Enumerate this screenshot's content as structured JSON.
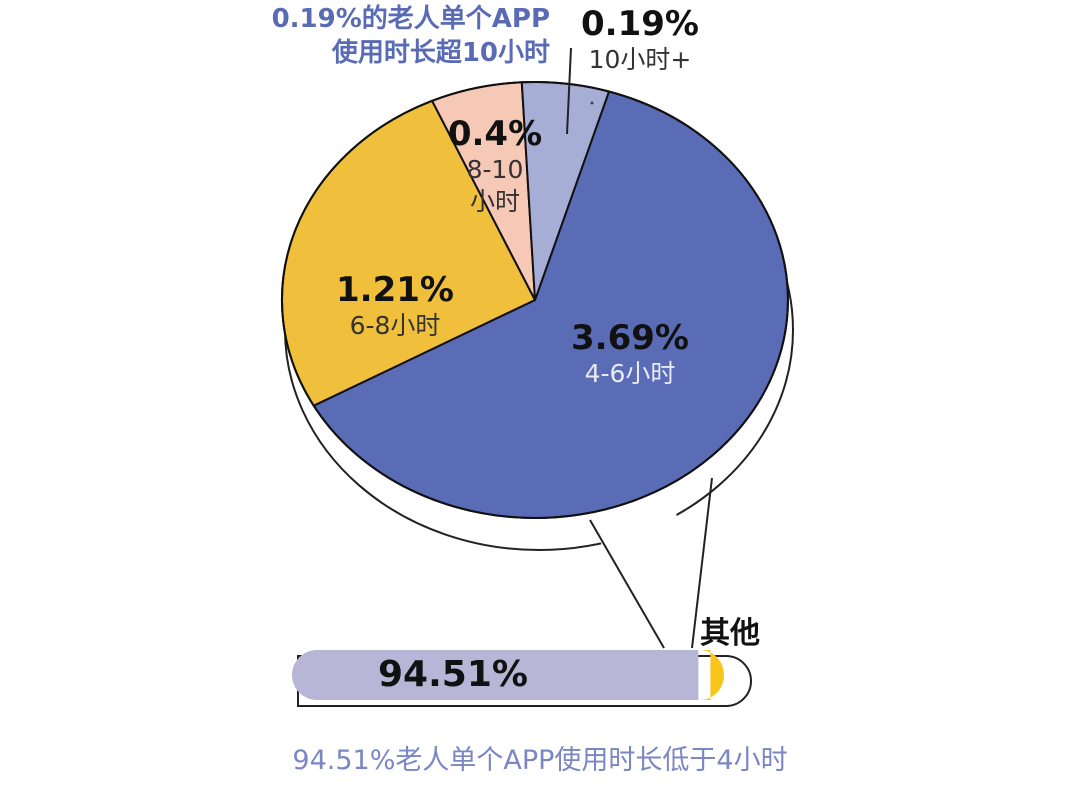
{
  "chart_data": [
    {
      "type": "pie",
      "slices": [
        {
          "label": "4-6小时",
          "percent_text": "3.69%",
          "value": 3.69,
          "color": "#5b6cb6"
        },
        {
          "label": "6-8小时",
          "percent_text": "1.21%",
          "value": 1.21,
          "color": "#f0c03c"
        },
        {
          "label": "8-10小时",
          "percent_text": "0.4%",
          "value": 0.4,
          "color": "#f6c9b7"
        },
        {
          "label": "10小时+",
          "percent_text": "0.19%",
          "value": 0.19,
          "color": "#a7aed6"
        }
      ],
      "annotation": {
        "line1": "0.19%的老人单个APP",
        "line2": "使用时长超10小时"
      }
    },
    {
      "type": "bar",
      "categories": [
        "",
        "其他"
      ],
      "values": [
        94.51,
        5.49
      ],
      "bar_value_text": "94.51%",
      "other_label": "其他",
      "colors": [
        "#b8b6d6",
        "#f8c51d"
      ]
    }
  ],
  "footer": "94.51%老人单个APP使用时长低于4小时"
}
